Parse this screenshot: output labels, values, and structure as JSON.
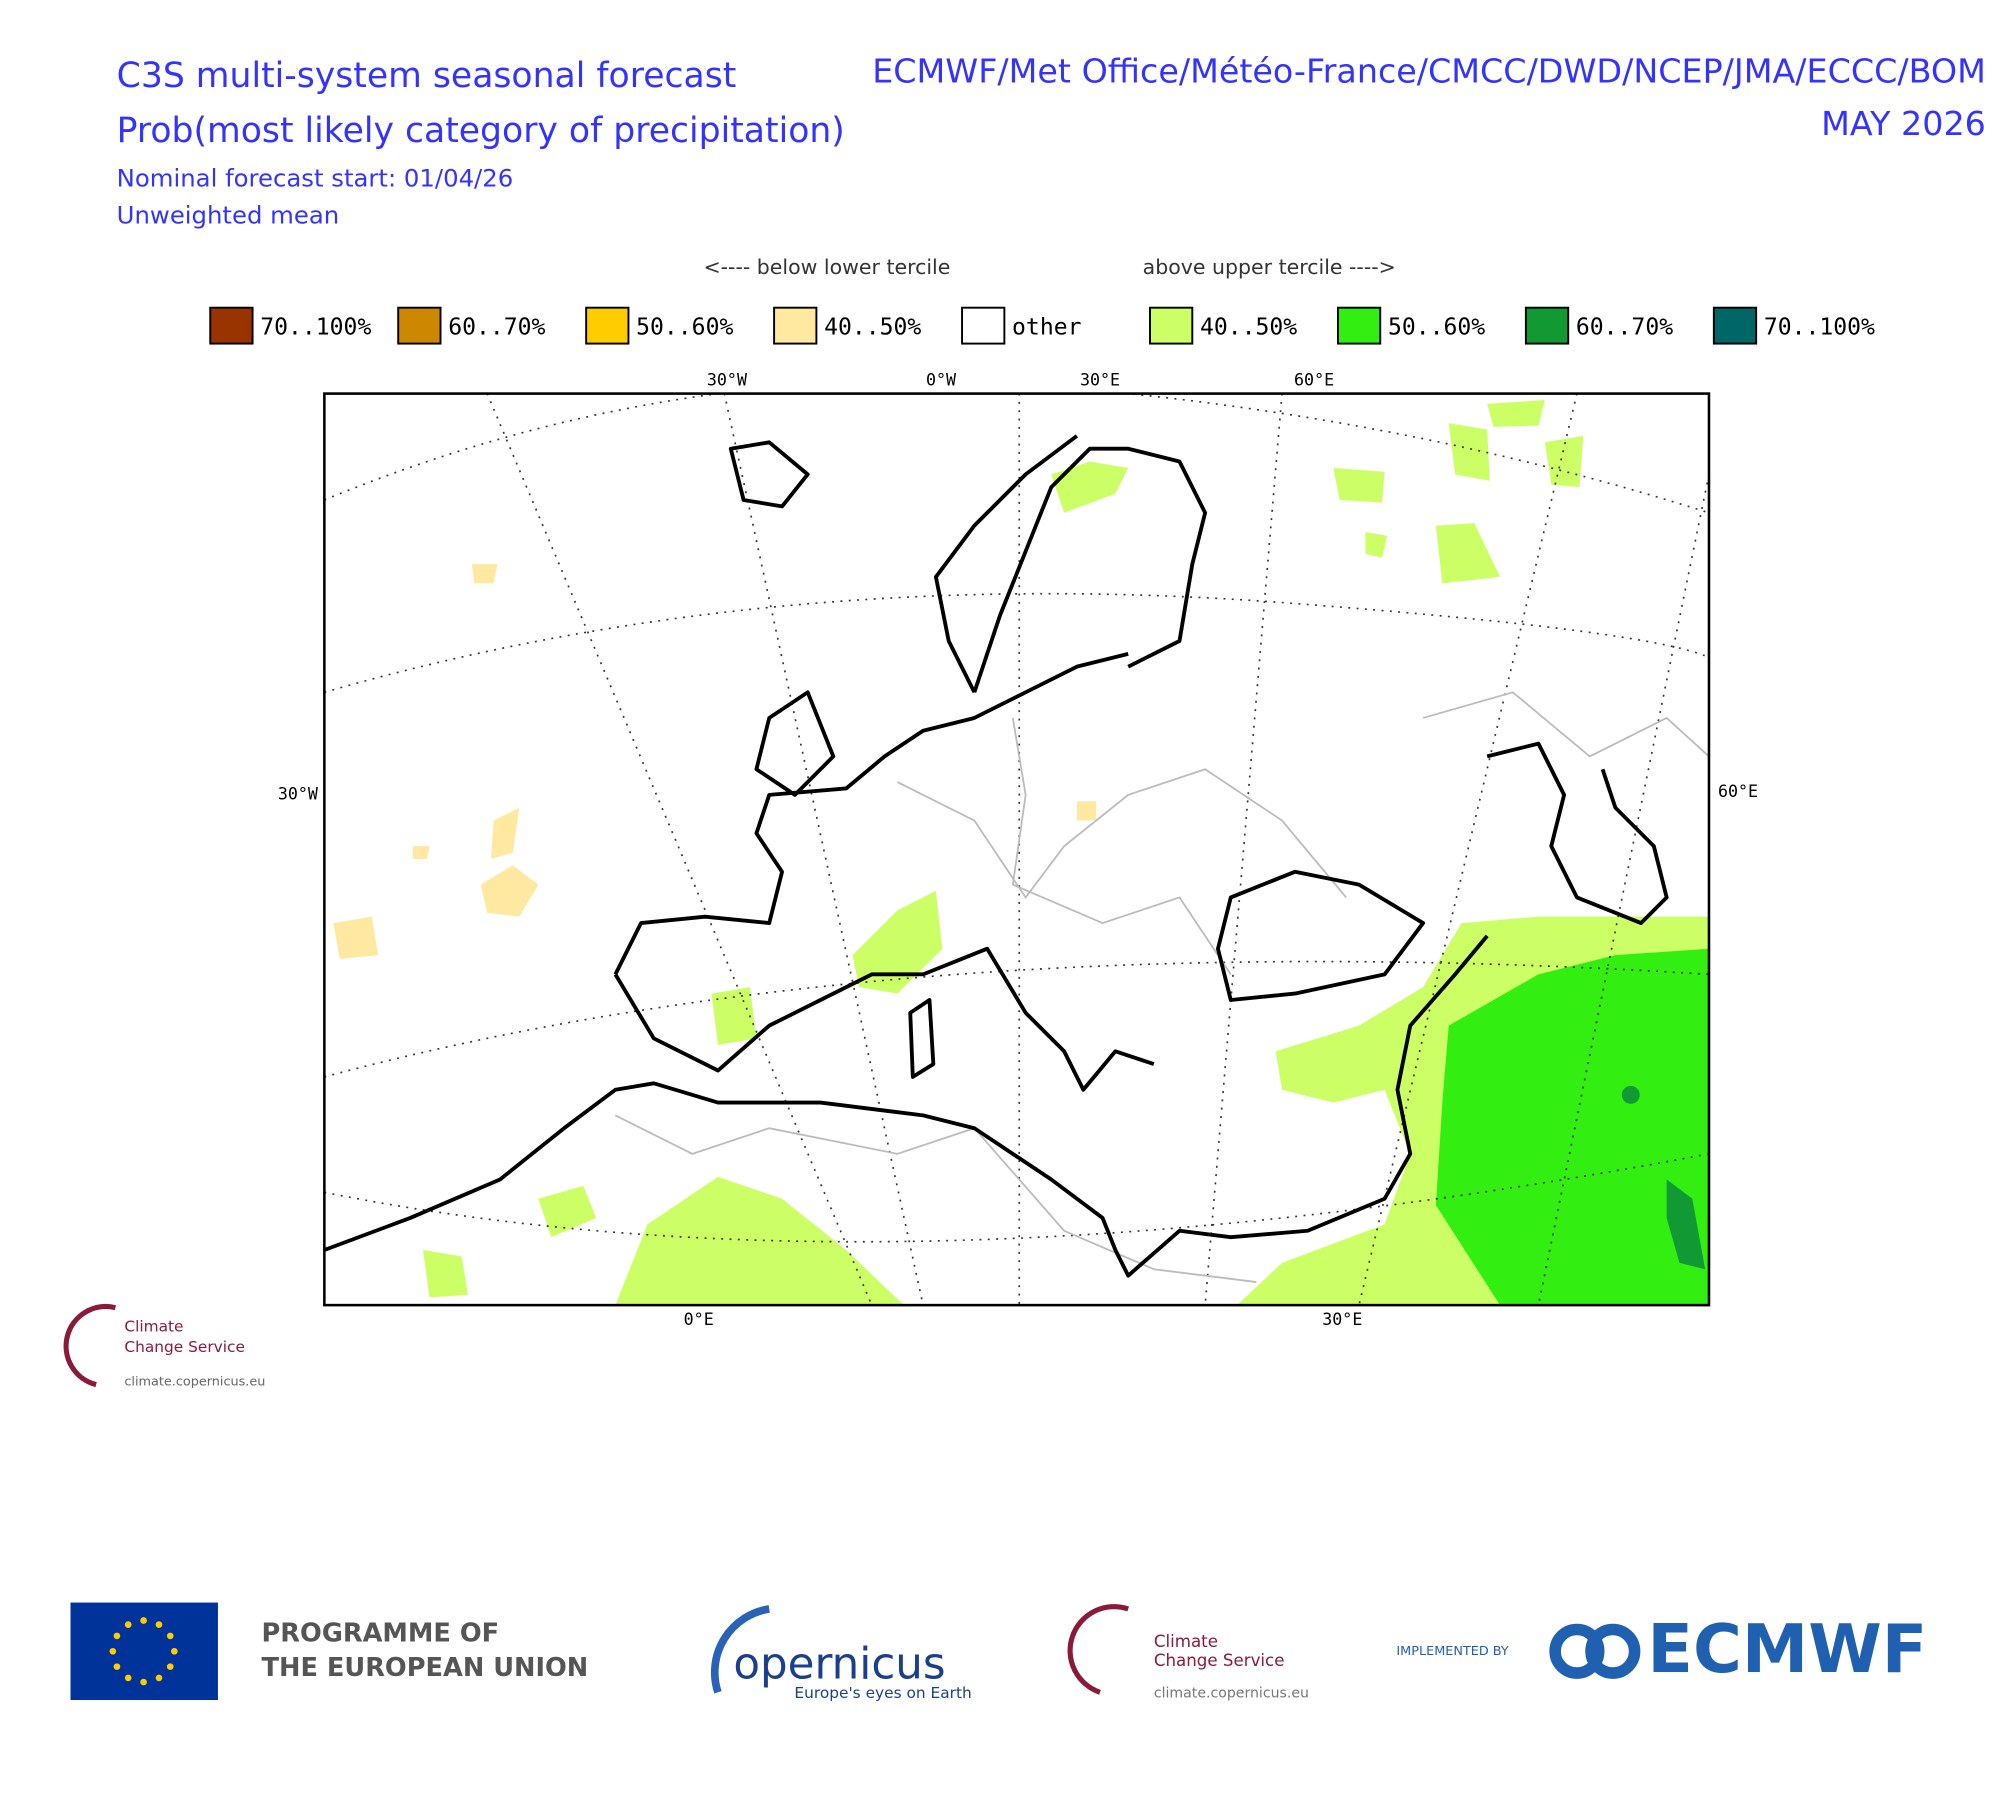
{
  "header": {
    "title": "C3S multi-system seasonal forecast",
    "subtitle": "Prob(most likely category of precipitation)",
    "models": "ECMWF/Met Office/Météo-France/CMCC/DWD/NCEP/JMA/ECCC/BOM",
    "month": "MAY 2026",
    "start": "Nominal forecast start: 01/04/26",
    "method": "Unweighted mean"
  },
  "legend": {
    "below": "<---- below lower tercile",
    "above": "above upper tercile ---->",
    "items": [
      {
        "label": "70..100%",
        "color": "#993300"
      },
      {
        "label": "60..70%",
        "color": "#cc8800"
      },
      {
        "label": "50..60%",
        "color": "#ffcc00"
      },
      {
        "label": "40..50%",
        "color": "#ffe8a0"
      },
      {
        "label": "other",
        "color": "#ffffff"
      },
      {
        "label": "40..50%",
        "color": "#ccff66"
      },
      {
        "label": "50..60%",
        "color": "#33ee11"
      },
      {
        "label": "60..70%",
        "color": "#119933"
      },
      {
        "label": "70..100%",
        "color": "#006666"
      }
    ]
  },
  "map": {
    "top_labels": [
      "30°W",
      "0°W",
      "30°E",
      "60°E"
    ],
    "left_label": "30°W",
    "right_label": "60°E",
    "bottom_labels": [
      "0°E",
      "30°E"
    ]
  },
  "logo_small": {
    "line1": "Climate",
    "line2": "Change Service",
    "url": "climate.copernicus.eu"
  },
  "footer": {
    "eu_line1": "PROGRAMME OF",
    "eu_line2": "THE EUROPEAN UNION",
    "copernicus": "opernicus",
    "copernicus_tag": "Europe's eyes on Earth",
    "c3s_line1": "Climate",
    "c3s_line2": "Change Service",
    "c3s_url": "climate.copernicus.eu",
    "implemented": "IMPLEMENTED BY",
    "ecmwf": "ECMWF"
  }
}
